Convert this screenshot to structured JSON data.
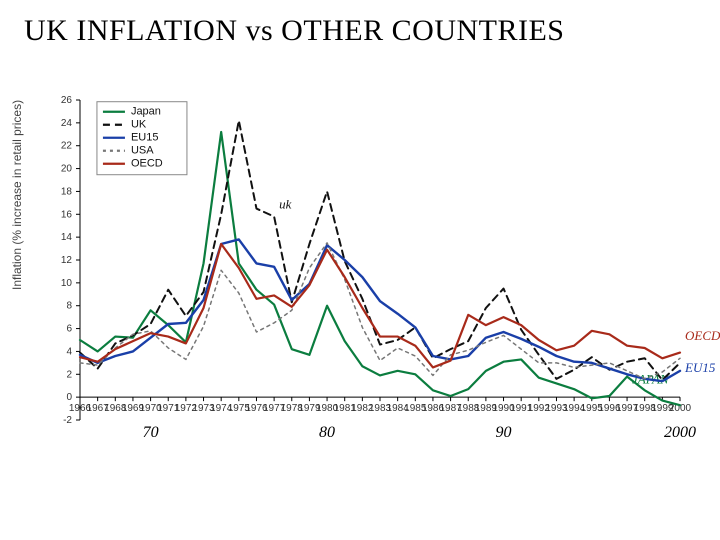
{
  "title": "UK INFLATION vs OTHER COUNTRIES",
  "chart": {
    "type": "line",
    "ylabel": "Inflation (% increase in retail prices)",
    "ylim": [
      -2,
      26
    ],
    "ytick_step": 2,
    "xlim": [
      1966,
      2000
    ],
    "xticks_every": 1,
    "x_annotations": [
      "70",
      "80",
      "90",
      "2000"
    ],
    "x_annotation_years": [
      1970,
      1980,
      1990,
      2000
    ],
    "background_color": "#ffffff",
    "axis_color": "#000000",
    "years": [
      1966,
      1967,
      1968,
      1969,
      1970,
      1971,
      1972,
      1973,
      1974,
      1975,
      1976,
      1977,
      1978,
      1979,
      1980,
      1981,
      1982,
      1983,
      1984,
      1985,
      1986,
      1987,
      1988,
      1989,
      1990,
      1991,
      1992,
      1993,
      1994,
      1995,
      1996,
      1997,
      1998,
      1999,
      2000
    ],
    "series": [
      {
        "name": "Japan",
        "color": "#0b7d3f",
        "dash": null,
        "width": 2.2,
        "values": [
          5.0,
          4.0,
          5.3,
          5.2,
          7.6,
          6.3,
          4.8,
          11.7,
          23.2,
          11.7,
          9.4,
          8.1,
          4.2,
          3.7,
          8.0,
          4.9,
          2.7,
          1.9,
          2.3,
          2.0,
          0.6,
          0.1,
          0.7,
          2.3,
          3.1,
          3.3,
          1.7,
          1.2,
          0.7,
          -0.1,
          0.1,
          1.8,
          0.6,
          -0.3,
          -0.7
        ],
        "annot": "JAPAN",
        "annot_color": "#0b7d3f",
        "annot_year": 1997,
        "annot_y": 1.2
      },
      {
        "name": "UK",
        "color": "#111111",
        "dash": "7,5",
        "width": 2.0,
        "values": [
          3.9,
          2.5,
          4.7,
          5.4,
          6.4,
          9.4,
          7.1,
          9.2,
          16.0,
          24.2,
          16.5,
          15.8,
          8.3,
          13.4,
          18.0,
          11.9,
          8.6,
          4.6,
          5.0,
          6.1,
          3.4,
          4.2,
          4.9,
          7.8,
          9.5,
          5.9,
          3.7,
          1.6,
          2.4,
          3.5,
          2.4,
          3.1,
          3.4,
          1.5,
          3.0
        ],
        "annot": "uk",
        "annot_color": "#111111",
        "annot_year": 1977,
        "annot_y": 16.5
      },
      {
        "name": "EU15",
        "color": "#1a3fa8",
        "dash": null,
        "width": 2.4,
        "values": [
          3.7,
          3.0,
          3.6,
          4.0,
          5.2,
          6.4,
          6.5,
          8.5,
          13.4,
          13.8,
          11.7,
          11.4,
          8.5,
          9.9,
          13.3,
          12.0,
          10.5,
          8.4,
          7.3,
          6.1,
          3.6,
          3.3,
          3.6,
          5.2,
          5.7,
          5.1,
          4.4,
          3.6,
          3.1,
          3.0,
          2.5,
          2.0,
          1.6,
          1.4,
          2.3
        ],
        "annot": "EU15",
        "annot_color": "#1a3fa8",
        "annot_year": 2000,
        "annot_y": 2.2
      },
      {
        "name": "USA",
        "color": "#777777",
        "dash": "3,4",
        "width": 1.5,
        "values": [
          3.0,
          2.8,
          4.3,
          5.5,
          5.8,
          4.3,
          3.3,
          6.2,
          11.1,
          9.1,
          5.7,
          6.5,
          7.6,
          11.3,
          13.5,
          10.3,
          6.1,
          3.2,
          4.3,
          3.6,
          1.9,
          3.7,
          4.1,
          4.8,
          5.4,
          4.2,
          3.0,
          3.0,
          2.6,
          2.8,
          3.0,
          2.3,
          1.6,
          2.2,
          3.4
        ],
        "annot": null
      },
      {
        "name": "OECD",
        "color": "#a82a1a",
        "dash": null,
        "width": 2.2,
        "values": [
          3.5,
          3.1,
          4.2,
          4.9,
          5.6,
          5.3,
          4.7,
          7.8,
          13.4,
          11.3,
          8.6,
          8.9,
          7.9,
          9.8,
          12.9,
          10.5,
          7.8,
          5.3,
          5.3,
          4.5,
          2.6,
          3.2,
          7.2,
          6.3,
          7.0,
          6.3,
          5.0,
          4.1,
          4.5,
          5.8,
          5.5,
          4.5,
          4.3,
          3.4,
          3.9
        ],
        "annot": "OECD",
        "annot_color": "#a82a1a",
        "annot_year": 2000,
        "annot_y": 5.0
      }
    ],
    "legend": {
      "x_year": 1967.3,
      "y_val": 25.5,
      "items": [
        {
          "label": "Japan",
          "color": "#0b7d3f",
          "dash": null
        },
        {
          "label": "UK",
          "color": "#111111",
          "dash": "7,5"
        },
        {
          "label": "EU15",
          "color": "#1a3fa8",
          "dash": null
        },
        {
          "label": "USA",
          "color": "#777777",
          "dash": "3,4"
        },
        {
          "label": "OECD",
          "color": "#a82a1a",
          "dash": null
        }
      ]
    }
  }
}
